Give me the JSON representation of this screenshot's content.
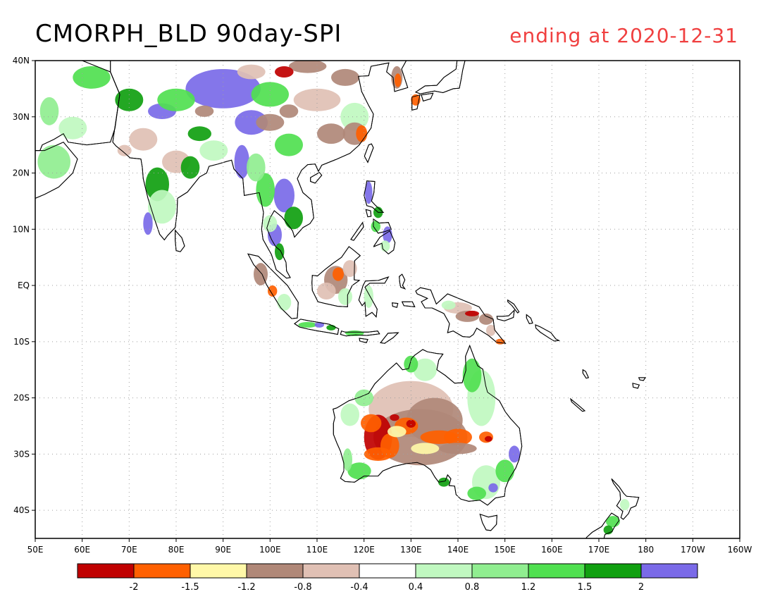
{
  "title": "CMORPH_BLD 90day-SPI",
  "subtitle": "ending at 2020-12-31",
  "colors": {
    "subtitle": "#f04040",
    "ocean": "#ffffff",
    "coast": "#000000",
    "grid": "#a0a0a0"
  },
  "map": {
    "lon_range": [
      50,
      200
    ],
    "lat_range": [
      -45,
      40
    ],
    "lon_ticks": [
      {
        "lon": 50,
        "label": "50E"
      },
      {
        "lon": 60,
        "label": "60E"
      },
      {
        "lon": 70,
        "label": "70E"
      },
      {
        "lon": 80,
        "label": "80E"
      },
      {
        "lon": 90,
        "label": "90E"
      },
      {
        "lon": 100,
        "label": "100E"
      },
      {
        "lon": 110,
        "label": "110E"
      },
      {
        "lon": 120,
        "label": "120E"
      },
      {
        "lon": 130,
        "label": "130E"
      },
      {
        "lon": 140,
        "label": "140E"
      },
      {
        "lon": 150,
        "label": "150E"
      },
      {
        "lon": 160,
        "label": "160E"
      },
      {
        "lon": 170,
        "label": "170E"
      },
      {
        "lon": 180,
        "label": "180"
      },
      {
        "lon": 190,
        "label": "170W"
      },
      {
        "lon": 200,
        "label": "160W"
      }
    ],
    "lat_ticks": [
      {
        "lat": 40,
        "label": "40N"
      },
      {
        "lat": 30,
        "label": "30N"
      },
      {
        "lat": 20,
        "label": "20N"
      },
      {
        "lat": 10,
        "label": "10N"
      },
      {
        "lat": 0,
        "label": "EQ"
      },
      {
        "lat": -10,
        "label": "10S"
      },
      {
        "lat": -20,
        "label": "20S"
      },
      {
        "lat": -30,
        "label": "30S"
      },
      {
        "lat": -40,
        "label": "40S"
      }
    ]
  },
  "colorbar": {
    "colors": [
      "#c00000",
      "#ff6000",
      "#fff8a8",
      "#b08878",
      "#e0c0b4",
      "#ffffff",
      "#c0f8c0",
      "#90ee90",
      "#50e050",
      "#10a010",
      "#7a6ae8"
    ],
    "labels": [
      "-2",
      "-1.5",
      "-1.2",
      "-0.8",
      "-0.4",
      "0.4",
      "0.8",
      "1.2",
      "1.5",
      "2"
    ]
  }
}
